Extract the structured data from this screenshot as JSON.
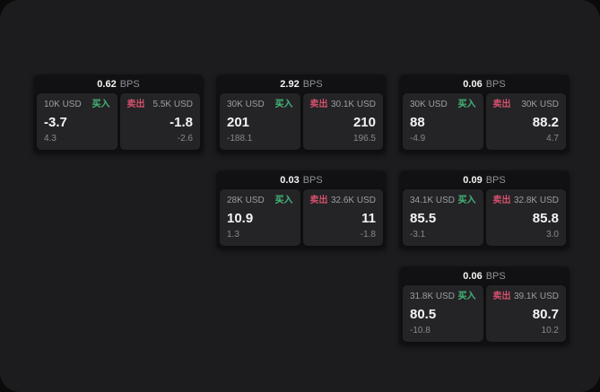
{
  "labels": {
    "buy": "买入",
    "sell": "卖出",
    "bps": "BPS"
  },
  "colors": {
    "buy": "#46b878",
    "sell": "#d4506b",
    "window_bg": "#1c1c1e",
    "card_bg": "#111113",
    "pane_bg": "#242427"
  },
  "cards": [
    {
      "col": 1,
      "row": 1,
      "bps": "0.62",
      "buy": {
        "amount": "10K USD",
        "price": "-3.7",
        "delta": "4.3"
      },
      "sell": {
        "amount": "5.5K USD",
        "price": "-1.8",
        "delta": "-2.6"
      }
    },
    {
      "col": 2,
      "row": 1,
      "bps": "2.92",
      "buy": {
        "amount": "30K USD",
        "price": "201",
        "delta": "-188.1"
      },
      "sell": {
        "amount": "30.1K USD",
        "price": "210",
        "delta": "196.5"
      }
    },
    {
      "col": 3,
      "row": 1,
      "bps": "0.06",
      "buy": {
        "amount": "30K USD",
        "price": "88",
        "delta": "-4.9"
      },
      "sell": {
        "amount": "30K USD",
        "price": "88.2",
        "delta": "4.7"
      }
    },
    {
      "col": 2,
      "row": 2,
      "bps": "0.03",
      "buy": {
        "amount": "28K USD",
        "price": "10.9",
        "delta": "1.3"
      },
      "sell": {
        "amount": "32.6K USD",
        "price": "11",
        "delta": "-1.8"
      }
    },
    {
      "col": 3,
      "row": 2,
      "bps": "0.09",
      "buy": {
        "amount": "34.1K USD",
        "price": "85.5",
        "delta": "-3.1"
      },
      "sell": {
        "amount": "32.8K USD",
        "price": "85.8",
        "delta": "3.0"
      }
    },
    {
      "col": 3,
      "row": 3,
      "bps": "0.06",
      "buy": {
        "amount": "31.8K USD",
        "price": "80.5",
        "delta": "-10.8"
      },
      "sell": {
        "amount": "39.1K USD",
        "price": "80.7",
        "delta": "10.2"
      }
    }
  ]
}
